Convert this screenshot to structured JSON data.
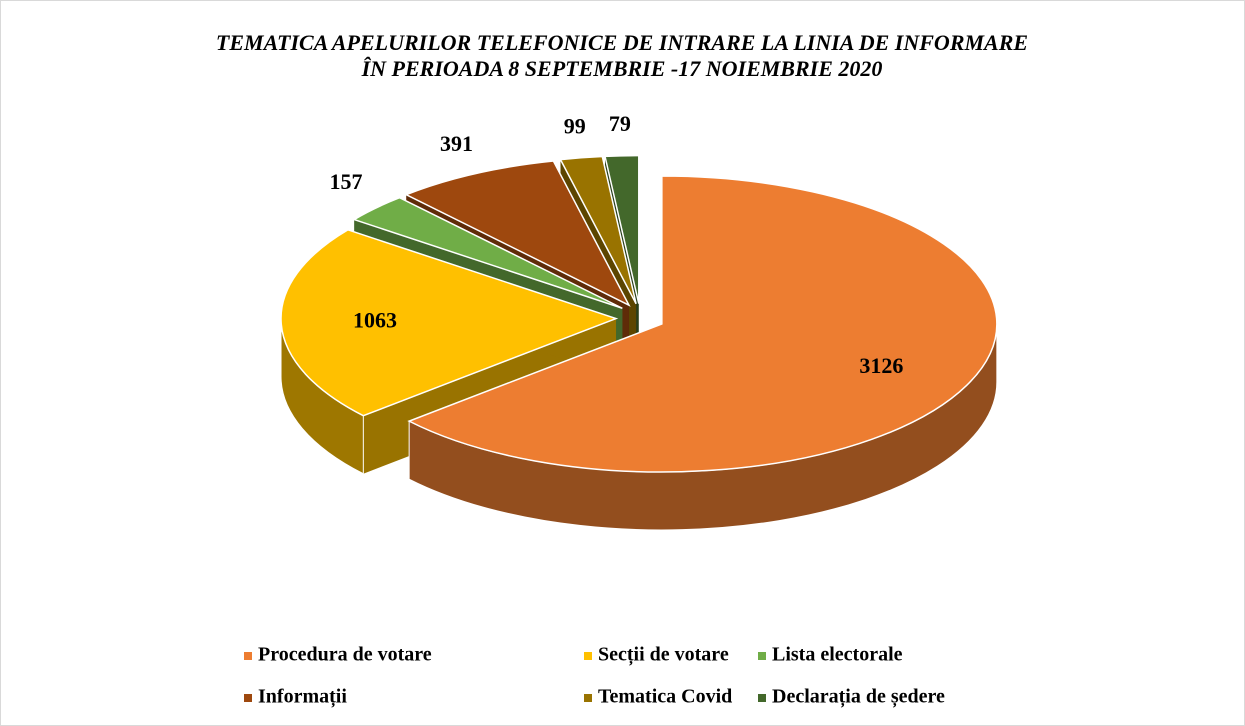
{
  "chart_data": {
    "type": "pie3d",
    "title": "TEMATICA APELURILOR TELEFONICE DE INTRARE LA LINIA DE INFORMARE ÎN PERIOADA 8 SEPTEMBRIE -17 NOIEMBRIE 2020",
    "categories": [
      "Procedura de votare",
      "Secții de votare",
      "Lista electorale",
      "Informații",
      "Tematica Covid",
      "Declarația de ședere"
    ],
    "values": [
      3126,
      1063,
      157,
      391,
      99,
      79
    ],
    "colors": [
      "#ed7d31",
      "#ffc000",
      "#70ad47",
      "#9e480e",
      "#997300",
      "#43682b"
    ],
    "legend": "bottom"
  }
}
